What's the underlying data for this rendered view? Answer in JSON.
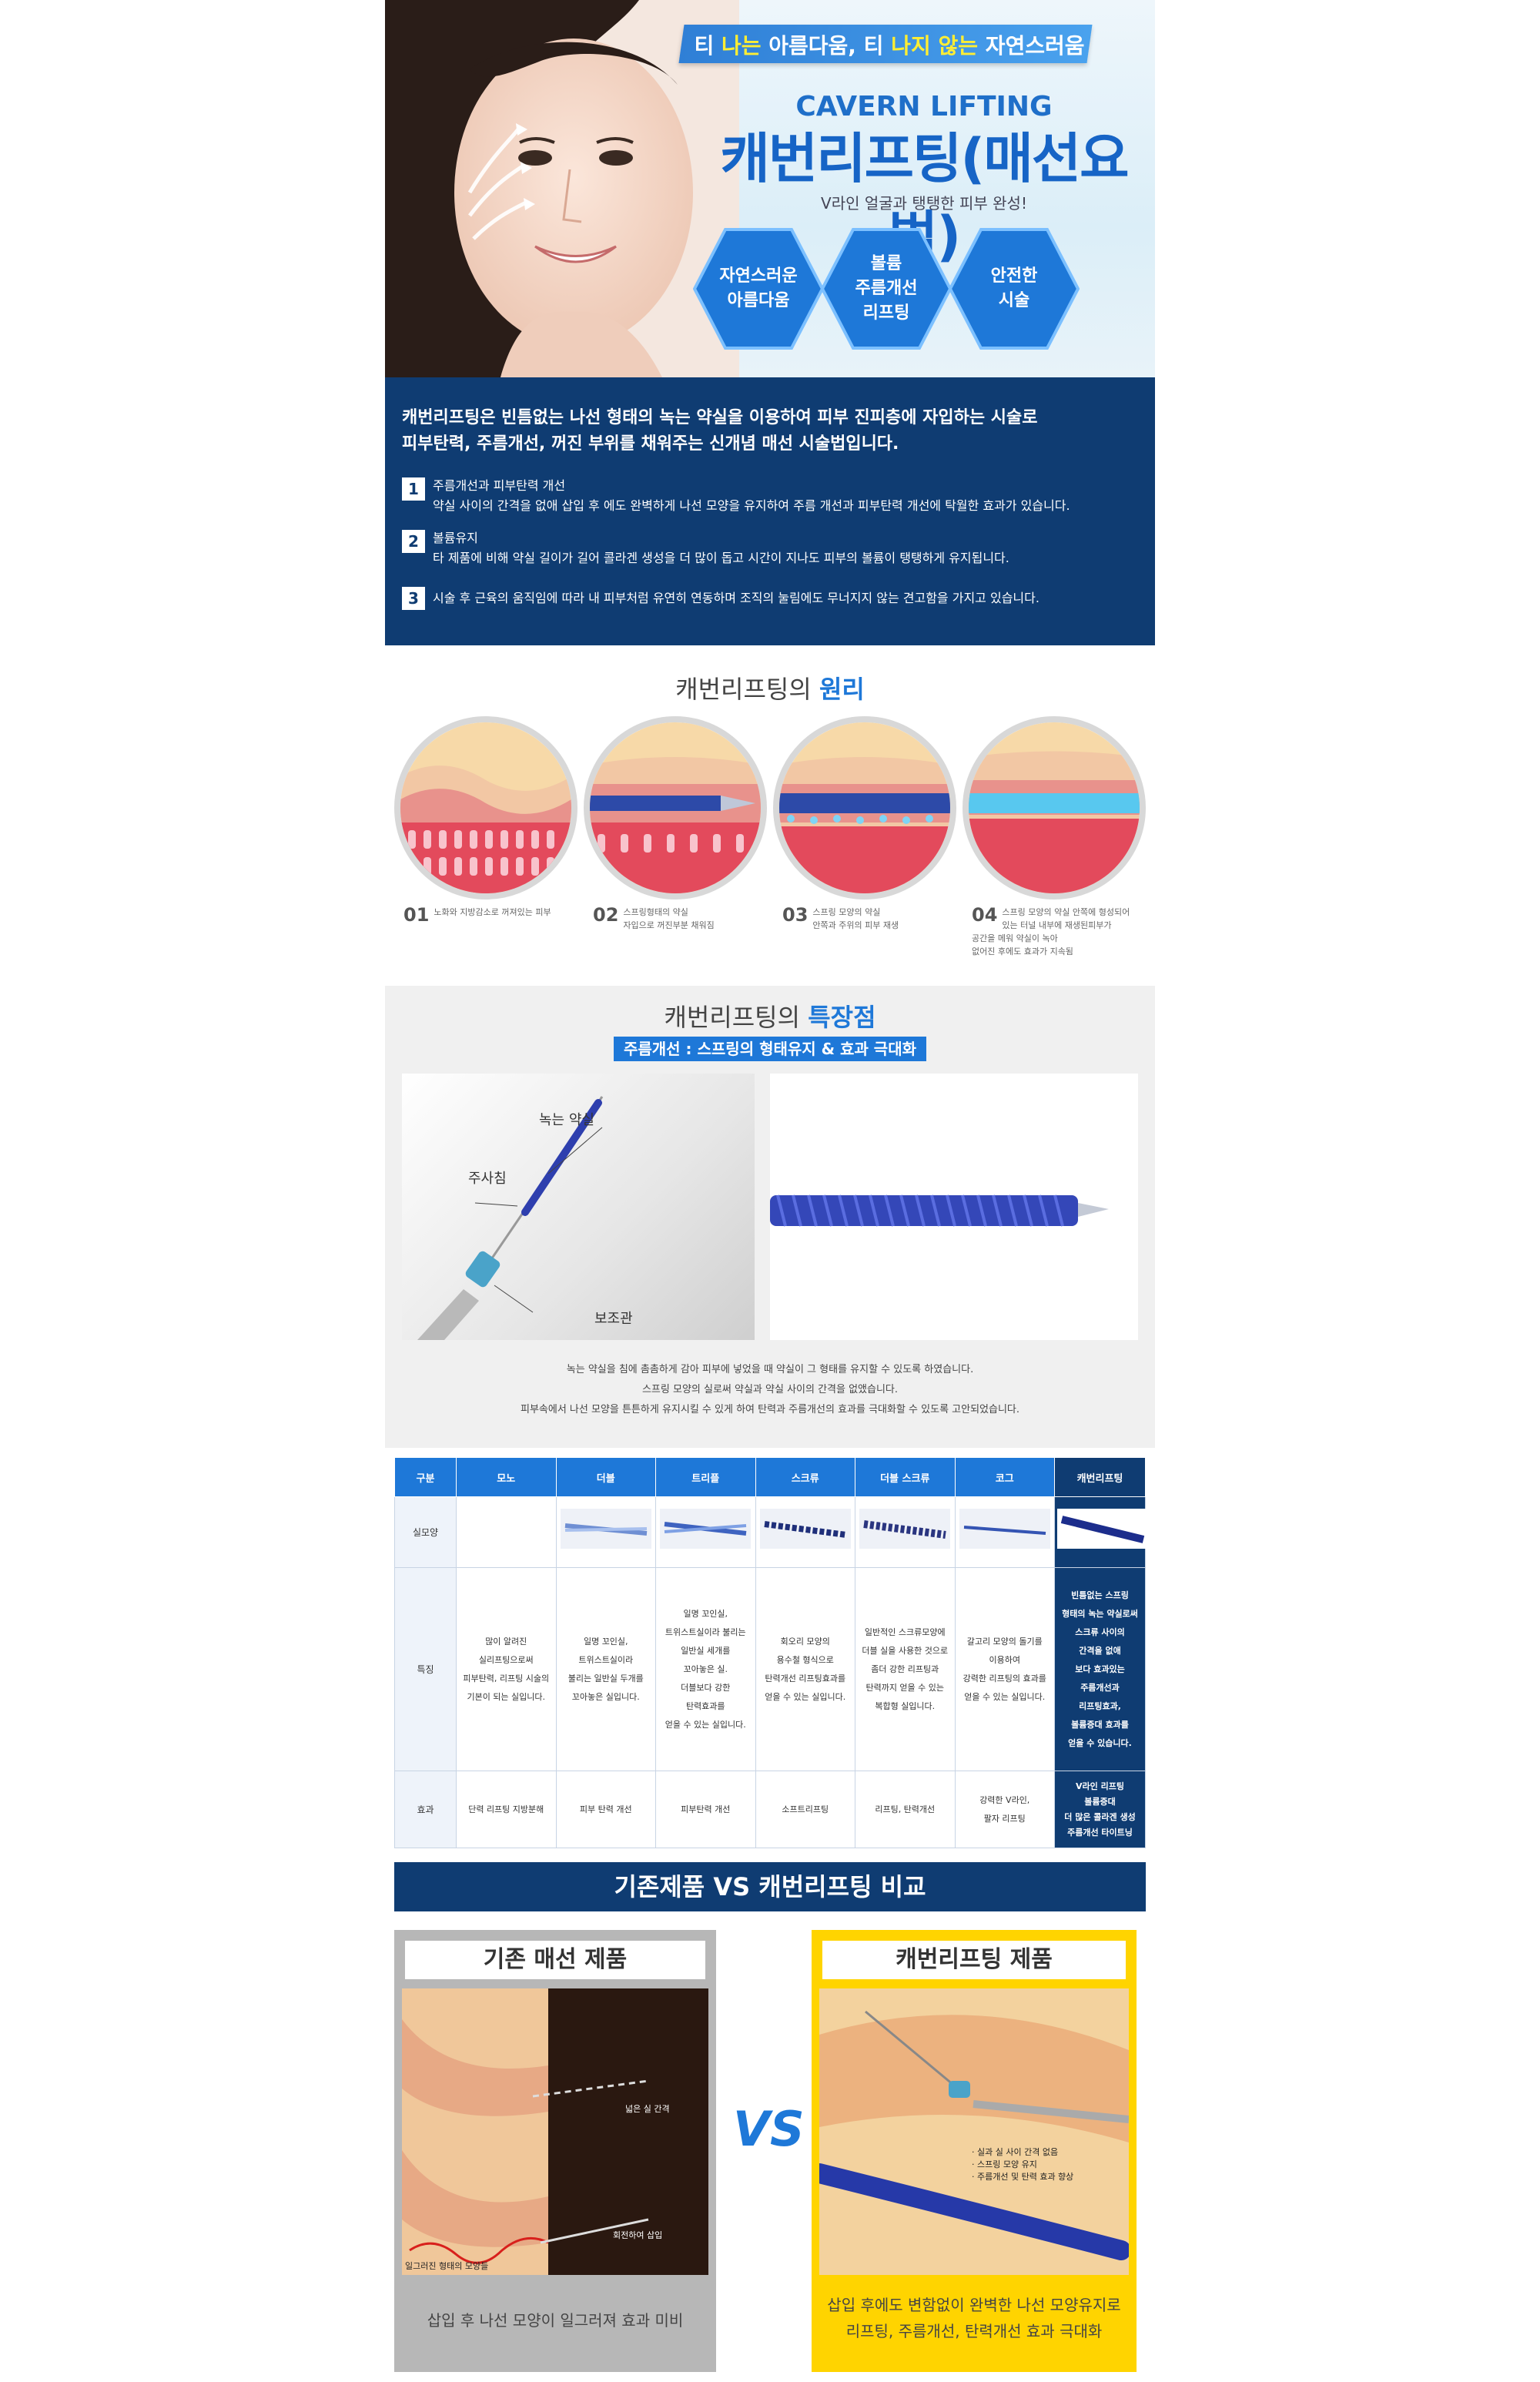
{
  "hero": {
    "tagline_parts": [
      "티 ",
      "나는",
      " 아름다움, 티 ",
      "나지 않는",
      " 자연스러움"
    ],
    "subtitle_en": "CAVERN LIFTING",
    "title": "캐번리프팅(매선요법)",
    "description": "V라인 얼굴과 탱탱한 피부 완성!",
    "badges": [
      {
        "label": "자연스러운\n아름다움"
      },
      {
        "label": "볼륨\n주름개선\n리프팅"
      },
      {
        "label": "안전한\n시술"
      }
    ],
    "colors": {
      "accent": "#1e78d8",
      "navy": "#0f3c72",
      "highlight": "#ffee33"
    }
  },
  "intro": {
    "lead_line1": "캐번리프팅은 빈틈없는 나선 형태의 녹는 약실을 이용하여 피부 진피층에 자입하는 시술로",
    "lead_line2": "피부탄력, 주름개선, 꺼진 부위를 채워주는 신개념 매선 시술법입니다.",
    "points": [
      {
        "num": "1",
        "title": "주름개선과 피부탄력 개선",
        "text": "약실 사이의 간격을 없애 삽입 후 에도 완벽하게 나선 모양을 유지하여 주름 개선과 피부탄력 개선에 탁월한 효과가 있습니다."
      },
      {
        "num": "2",
        "title": "볼륨유지",
        "text": "타 제품에 비해 약실 길이가 길어 콜라겐 생성을 더 많이 돕고 시간이 지나도 피부의 볼륨이 탱탱하게 유지됩니다."
      },
      {
        "num": "3",
        "title": "",
        "text": "시술 후 근육의 움직임에 따라 내 피부처럼 유연히 연동하며   조직의 눌림에도 무너지지 않는 견고함을 가지고 있습니다."
      }
    ]
  },
  "principle": {
    "title_plain": "캐번리프팅의 ",
    "title_highlight": "원리",
    "steps": [
      {
        "num": "01",
        "text": "노화와 지방감소로 꺼져있는 피부"
      },
      {
        "num": "02",
        "text": "스프링형태의 약실\n자입으로 꺼진부분 채워짐"
      },
      {
        "num": "03",
        "text": "스프링 모양의 약실\n안쪽과 주위의 피부 재생"
      },
      {
        "num": "04",
        "text": "스프링 모양의 약실 안쪽에 형성되어\n있는 터널 내부에  재생된피부가\n공간을 메워 약실이 녹아\n없어진 후에도 효과가 지속됨"
      }
    ]
  },
  "features": {
    "title_plain": "캐번리프팅의 ",
    "title_highlight": "특장점",
    "ribbon": "주름개선 : 스프링의 형태유지 & 효과 극대화",
    "labels": {
      "thread": "녹는 약실",
      "needle": "주사침",
      "guide": "보조관"
    },
    "notes": [
      "녹는 약실을 침에 촘촘하게 감아 피부에 넣었을 때 약실이 그 형태를 유지할 수 있도록 하였습니다.",
      "스프링 모양의 실로써 약실과 약실 사이의 간격을 없앴습니다.",
      "피부속에서 나선 모양을 튼튼하게 유지시킬 수 있게 하여 탄력과 주름개선의 효과를 극대화할 수 있도록 고안되었습니다."
    ]
  },
  "table": {
    "headers": [
      "구분",
      "모노",
      "더블",
      "트리플",
      "스크류",
      "더블 스크류",
      "코그",
      "캐번리프팅"
    ],
    "row_labels": [
      "실모양",
      "특징",
      "효과"
    ],
    "features": [
      "많이 알려진\n실리프팅으로써\n피부탄력, 리프팅 시술의\n기본이 되는 실입니다.",
      "일명 꼬인실,\n트위스트실이라\n불리는 일반실 두개를\n꼬아놓은 실입니다.",
      "일명 꼬인실,\n트위스트실이라 불리는\n일반실 세개를\n꼬아놓은 실.\n더블보다 강한\n탄력효과를\n얻을 수 있는 실입니다.",
      "회오리 모양의\n용수철 형식으로\n탄력개선 리프팅효과를\n얻을 수 있는 실입니다.",
      "일반적인 스크류모양에\n더블 실을 사용한 것으로\n좀더 강한 리프팅과\n탄력까지 얻을 수 있는\n복합형 실입니다.",
      "갈고리 모양의 돌기를\n이용하여\n강력한 리프팅의 효과를\n얻을 수 있는 실입니다.",
      "빈틈없는 스프링\n형태의 녹는 약실로써\n스크류 사이의\n간격을 없애\n보다 효과있는\n주름개선과\n리프팅효과,\n볼륨증대 효과를\n얻을 수 있습니다."
    ],
    "effects": [
      "단력 리프팅 지방분해",
      "피부 탄력 개선",
      "피부탄력 개선",
      "소프트리프팅",
      "리프팅, 탄력개선",
      "강력한 V라인,\n팔자 리프팅",
      "V라인 리프팅\n볼륨증대\n더 많은 콜라겐 생성\n주름개선 타이트닝"
    ]
  },
  "compare": {
    "banner": "기존제품 VS 캐번리프팅 비교",
    "vs": "VS",
    "old": {
      "title": "기존 매선 제품",
      "annot1": "넓은 실 간격",
      "annot2": "회전하여 삽입",
      "annot3": "일그러진 형태의 모양들",
      "footer": "삽입 후 나선 모양이 일그러져 효과 미비"
    },
    "new": {
      "title": "캐번리프팅 제품",
      "annots": [
        "· 실과 실 사이 간격 없음",
        "· 스프링 모양 유지",
        "· 주름개선 및 탄력 효과 향상"
      ],
      "footer_line1": "삽입 후에도 변함없이 완벽한 나선 모양유지로",
      "footer_line2": "리프팅, 주름개선, 탄력개선 효과 극대화"
    }
  }
}
